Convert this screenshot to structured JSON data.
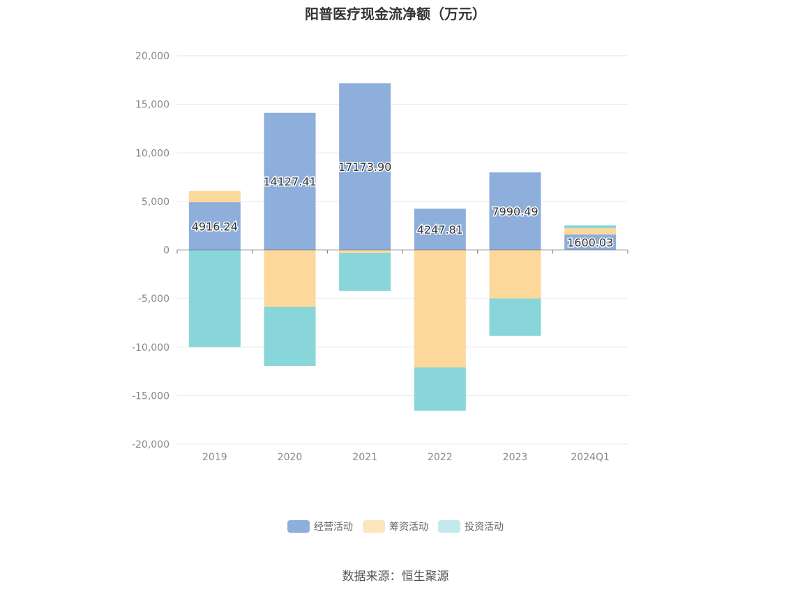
{
  "chart_data": {
    "type": "bar",
    "stacked": true,
    "title": "阳普医疗现金流净额（万元）",
    "categories": [
      "2019",
      "2020",
      "2021",
      "2022",
      "2023",
      "2024Q1"
    ],
    "series": [
      {
        "name": "经营活动",
        "color": "#8eaedb",
        "values": [
          4916.24,
          14127.41,
          17173.9,
          4247.81,
          7990.49,
          1600.03
        ]
      },
      {
        "name": "筹资活动",
        "color": "#fdd89b",
        "values": [
          1150,
          -5850,
          -300,
          -12100,
          -5000,
          650
        ]
      },
      {
        "name": "投资活动",
        "color": "#88d6da",
        "values": [
          -10000,
          -6100,
          -3900,
          -4450,
          -3850,
          280
        ]
      }
    ],
    "data_labels": [
      "4916.24",
      "14127.41",
      "17173.90",
      "4247.81",
      "7990.49",
      "1600.03"
    ],
    "ylim": [
      -20000,
      20000
    ],
    "yticks": [
      20000,
      15000,
      10000,
      5000,
      0,
      -5000,
      -10000,
      -15000,
      -20000
    ],
    "ytick_labels": [
      "20,000",
      "15,000",
      "10,000",
      "5,000",
      "0",
      "-5,000",
      "-10,000",
      "-15,000",
      "-20,000"
    ],
    "grid": true,
    "legend_position": "bottom-center"
  },
  "legend": {
    "items": [
      {
        "label": "经营活动",
        "color": "#8eaedb"
      },
      {
        "label": "筹资活动",
        "color": "#fdd89b"
      },
      {
        "label": "投资活动",
        "color": "#c2eaec"
      }
    ]
  },
  "source": "数据来源：恒生聚源"
}
